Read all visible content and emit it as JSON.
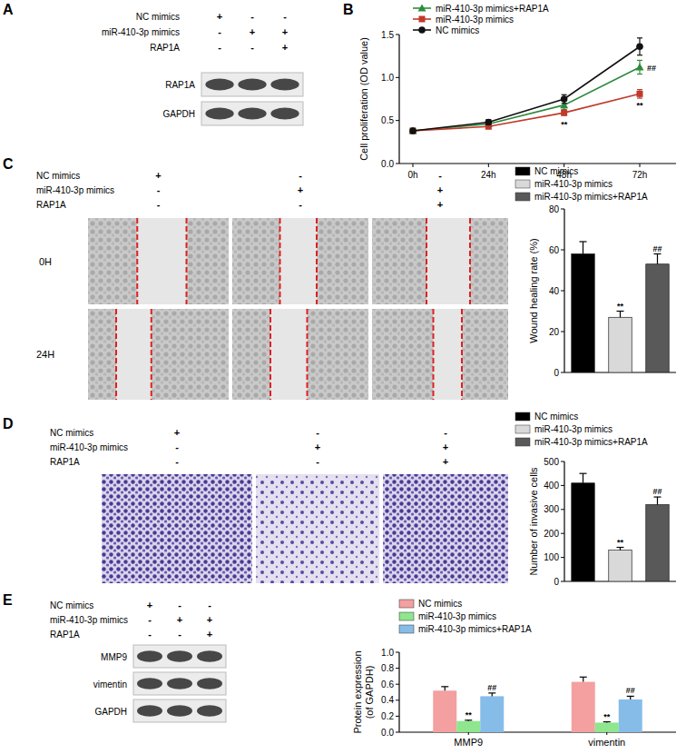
{
  "panels": {
    "labels": [
      "A",
      "B",
      "C",
      "D",
      "E"
    ]
  },
  "blot_A": {
    "conditions": [
      {
        "name": "NC mimics",
        "signs": [
          "+",
          "-",
          "-"
        ]
      },
      {
        "name": "miR-410-3p mimics",
        "signs": [
          "-",
          "+",
          "+"
        ]
      },
      {
        "name": "RAP1A",
        "signs": [
          "-",
          "-",
          "+"
        ]
      }
    ],
    "bands": [
      "RAP1A",
      "GAPDH"
    ]
  },
  "images_C": {
    "conditions": [
      {
        "name": "NC mimics",
        "signs": [
          "+",
          "-",
          "-"
        ]
      },
      {
        "name": "miR-410-3p mimics",
        "signs": [
          "-",
          "+",
          "+"
        ]
      },
      {
        "name": "RAP1A",
        "signs": [
          "-",
          "-",
          "+"
        ]
      }
    ],
    "rows": [
      "0H",
      "24H"
    ]
  },
  "images_D": {
    "conditions": [
      {
        "name": "NC mimics",
        "signs": [
          "+",
          "-",
          "-"
        ]
      },
      {
        "name": "miR-410-3p mimics",
        "signs": [
          "-",
          "+",
          "+"
        ]
      },
      {
        "name": "RAP1A",
        "signs": [
          "-",
          "-",
          "+"
        ]
      }
    ]
  },
  "blot_E": {
    "conditions": [
      {
        "name": "NC mimics",
        "signs": [
          "+",
          "-",
          "-"
        ]
      },
      {
        "name": "miR-410-3p mimics",
        "signs": [
          "-",
          "+",
          "+"
        ]
      },
      {
        "name": "RAP1A",
        "signs": [
          "-",
          "-",
          "+"
        ]
      }
    ],
    "bands": [
      "MMP9",
      "vimentin",
      "GAPDH"
    ]
  },
  "chart_data": [
    {
      "type": "line",
      "categories": [
        "0h",
        "24h",
        "48h",
        "72h"
      ],
      "y_label": "Cell proliferation (OD value)",
      "ylim": [
        0,
        1.5
      ],
      "yticks": [
        {
          "value": 0,
          "label": "0.0"
        },
        0.5,
        {
          "value": 1,
          "label": "1.0"
        },
        1.5
      ],
      "legend": "top-left",
      "series": [
        {
          "name": "miR-410-3p mimics+RAP1A",
          "color": "#2e8b3e",
          "marker": "triangle",
          "values": [
            0.38,
            0.46,
            0.68,
            1.12
          ],
          "errors": [
            0.03,
            0.03,
            0.05,
            0.08
          ]
        },
        {
          "name": "miR-410-3p mimics",
          "color": "#c0392b",
          "marker": "square",
          "values": [
            0.38,
            0.43,
            0.59,
            0.81
          ],
          "errors": [
            0.02,
            0.02,
            0.03,
            0.05
          ]
        },
        {
          "name": "NC mimics",
          "color": "#111111",
          "marker": "circle",
          "values": [
            0.38,
            0.48,
            0.75,
            1.36
          ],
          "errors": [
            0.02,
            0.03,
            0.05,
            0.1
          ]
        }
      ],
      "annotations": [
        {
          "text": "**",
          "category": 2,
          "series": 1,
          "position": "below"
        },
        {
          "text": "**",
          "category": 3,
          "series": 1,
          "position": "below"
        },
        {
          "text": "##",
          "category": 3,
          "series": 0,
          "position": "right"
        }
      ]
    },
    {
      "type": "bar",
      "categories": [
        "NC mimics",
        "miR-410-3p mimics",
        "miR-410-3p mimics+RAP1A"
      ],
      "values": [
        58,
        27,
        53
      ],
      "errors": [
        6,
        3,
        5
      ],
      "colors": [
        "#000000",
        "#d9d9d9",
        "#595959"
      ],
      "y_label": "Wound healing rate (%)",
      "ylim": [
        0,
        80
      ],
      "yticks": [
        0,
        20,
        40,
        60,
        80
      ],
      "legend": "top",
      "tick_labels": "y",
      "annotations": [
        {
          "text": "**",
          "category": 1
        },
        {
          "text": "##",
          "category": 2
        }
      ]
    },
    {
      "type": "bar",
      "categories": [
        "NC mimics",
        "miR-410-3p mimics",
        "miR-410-3p mimics+RAP1A"
      ],
      "values": [
        410,
        130,
        320
      ],
      "errors": [
        40,
        12,
        32
      ],
      "colors": [
        "#000000",
        "#d9d9d9",
        "#595959"
      ],
      "y_label": "Number of invasive cells",
      "ylim": [
        0,
        500
      ],
      "yticks": [
        0,
        100,
        200,
        300,
        400,
        500
      ],
      "legend": "top",
      "tick_labels": "y",
      "annotations": [
        {
          "text": "**",
          "category": 1
        },
        {
          "text": "##",
          "category": 2
        }
      ]
    },
    {
      "type": "bar",
      "categories": [
        "MMP9",
        "vimentin"
      ],
      "y_label": [
        "Protein expression",
        "(of GAPDH)"
      ],
      "ylim": [
        0,
        1
      ],
      "yticks": [
        {
          "value": 0,
          "label": "0.0"
        },
        0.2,
        0.4,
        0.6,
        0.8,
        {
          "value": 1,
          "label": "1.0"
        }
      ],
      "legend": "top",
      "series": [
        {
          "name": "NC mimics",
          "color": "#f4a0a0",
          "values": [
            0.52,
            0.63
          ],
          "errors": [
            0.05,
            0.06
          ]
        },
        {
          "name": "miR-410-3p mimics",
          "color": "#8ee68e",
          "values": [
            0.14,
            0.12
          ],
          "errors": [
            0.01,
            0.01
          ]
        },
        {
          "name": "miR-410-3p mimics+RAP1A",
          "color": "#86bde8",
          "values": [
            0.45,
            0.41
          ],
          "errors": [
            0.04,
            0.04
          ]
        }
      ],
      "annotations": [
        {
          "text": "**",
          "category": 0,
          "series": 1
        },
        {
          "text": "**",
          "category": 1,
          "series": 1
        },
        {
          "text": "##",
          "category": 0,
          "series": 2
        },
        {
          "text": "##",
          "category": 1,
          "series": 2
        }
      ]
    }
  ]
}
